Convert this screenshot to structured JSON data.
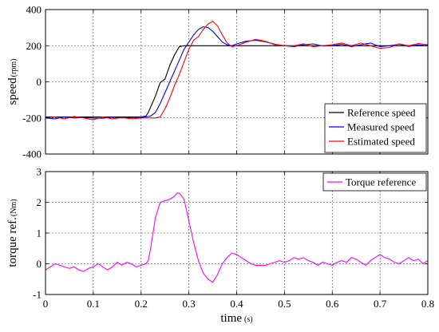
{
  "chart_data": [
    {
      "type": "line",
      "ylabel": "speed",
      "ylabel_unit": "(rpm)",
      "xlim": [
        0,
        0.8
      ],
      "ylim": [
        -400,
        400
      ],
      "xticks": [
        0,
        0.1,
        0.2,
        0.3,
        0.4,
        0.5,
        0.6,
        0.7,
        0.8
      ],
      "xtick_labels": [
        "",
        "",
        "",
        "",
        "",
        "",
        "",
        "",
        ""
      ],
      "yticks": [
        -400,
        -200,
        0,
        200,
        400
      ],
      "ytick_labels": [
        "-400",
        "-200",
        "0",
        "200",
        "400"
      ],
      "grid": true,
      "legend": "bottom-right",
      "series": [
        {
          "name": "Reference speed",
          "color": "#000000",
          "x": [
            0,
            0.05,
            0.1,
            0.15,
            0.2,
            0.21,
            0.215,
            0.22,
            0.23,
            0.24,
            0.25,
            0.26,
            0.27,
            0.28,
            0.29,
            0.3,
            0.35,
            0.4,
            0.45,
            0.5,
            0.55,
            0.6,
            0.65,
            0.7,
            0.75,
            0.8
          ],
          "y": [
            -195,
            -195,
            -195,
            -195,
            -195,
            -190,
            -170,
            -140,
            -80,
            -5,
            15,
            90,
            150,
            195,
            200,
            200,
            200,
            200,
            200,
            200,
            200,
            200,
            200,
            200,
            200,
            200
          ]
        },
        {
          "name": "Measured speed",
          "color": "#0000ff",
          "x": [
            0,
            0.02,
            0.04,
            0.06,
            0.08,
            0.1,
            0.12,
            0.14,
            0.16,
            0.18,
            0.2,
            0.21,
            0.22,
            0.23,
            0.24,
            0.25,
            0.26,
            0.27,
            0.28,
            0.29,
            0.3,
            0.31,
            0.32,
            0.33,
            0.34,
            0.35,
            0.36,
            0.37,
            0.38,
            0.39,
            0.4,
            0.42,
            0.44,
            0.46,
            0.48,
            0.5,
            0.52,
            0.54,
            0.56,
            0.58,
            0.6,
            0.62,
            0.64,
            0.66,
            0.68,
            0.7,
            0.72,
            0.74,
            0.76,
            0.78,
            0.8
          ],
          "y": [
            -200,
            -205,
            -195,
            -200,
            -198,
            -200,
            -202,
            -196,
            -200,
            -198,
            -197,
            -195,
            -190,
            -170,
            -120,
            -60,
            0,
            60,
            120,
            180,
            220,
            260,
            290,
            305,
            300,
            280,
            250,
            220,
            205,
            200,
            210,
            225,
            230,
            222,
            208,
            200,
            195,
            205,
            210,
            198,
            200,
            208,
            195,
            205,
            215,
            195,
            200,
            208,
            196,
            205,
            200
          ]
        },
        {
          "name": "Estimated speed",
          "color": "#ff0000",
          "x": [
            0,
            0.02,
            0.04,
            0.06,
            0.08,
            0.1,
            0.12,
            0.14,
            0.16,
            0.18,
            0.2,
            0.21,
            0.22,
            0.23,
            0.24,
            0.25,
            0.26,
            0.27,
            0.28,
            0.29,
            0.3,
            0.31,
            0.32,
            0.33,
            0.34,
            0.35,
            0.36,
            0.37,
            0.38,
            0.39,
            0.4,
            0.42,
            0.44,
            0.46,
            0.48,
            0.5,
            0.52,
            0.54,
            0.56,
            0.58,
            0.6,
            0.62,
            0.64,
            0.66,
            0.68,
            0.7,
            0.72,
            0.74,
            0.76,
            0.78,
            0.8
          ],
          "y": [
            -200,
            -195,
            -205,
            -192,
            -200,
            -210,
            -195,
            -205,
            -198,
            -205,
            -200,
            -200,
            -200,
            -200,
            -195,
            -150,
            -90,
            -20,
            40,
            110,
            180,
            230,
            250,
            290,
            320,
            335,
            310,
            260,
            215,
            195,
            200,
            220,
            235,
            225,
            205,
            200,
            200,
            210,
            195,
            200,
            205,
            215,
            200,
            215,
            200,
            185,
            190,
            210,
            200,
            212,
            205
          ]
        }
      ]
    },
    {
      "type": "line",
      "ylabel": "torque ref.",
      "ylabel_unit": "(Nm)",
      "xlabel": "time",
      "xlabel_unit": "(s)",
      "xlim": [
        0,
        0.8
      ],
      "ylim": [
        -1,
        3
      ],
      "xticks": [
        0,
        0.1,
        0.2,
        0.3,
        0.4,
        0.5,
        0.6,
        0.7,
        0.8
      ],
      "xtick_labels": [
        "0",
        "0.1",
        "0.2",
        "0.3",
        "0.4",
        "0.5",
        "0.6",
        "0.7",
        "0.8"
      ],
      "yticks": [
        -1,
        0,
        1,
        2,
        3
      ],
      "ytick_labels": [
        "-1",
        "0",
        "1",
        "2",
        "3"
      ],
      "grid": true,
      "legend": "top-right",
      "series": [
        {
          "name": "Torque reference",
          "color": "#ff00ff",
          "x": [
            0,
            0.01,
            0.02,
            0.03,
            0.04,
            0.05,
            0.06,
            0.07,
            0.08,
            0.09,
            0.1,
            0.11,
            0.12,
            0.13,
            0.14,
            0.15,
            0.16,
            0.17,
            0.18,
            0.19,
            0.2,
            0.21,
            0.215,
            0.22,
            0.23,
            0.24,
            0.25,
            0.26,
            0.27,
            0.275,
            0.28,
            0.29,
            0.3,
            0.31,
            0.32,
            0.33,
            0.34,
            0.35,
            0.36,
            0.37,
            0.38,
            0.39,
            0.4,
            0.41,
            0.42,
            0.43,
            0.44,
            0.45,
            0.46,
            0.47,
            0.48,
            0.49,
            0.5,
            0.51,
            0.52,
            0.53,
            0.54,
            0.55,
            0.56,
            0.57,
            0.58,
            0.59,
            0.6,
            0.61,
            0.62,
            0.63,
            0.64,
            0.65,
            0.66,
            0.67,
            0.68,
            0.69,
            0.7,
            0.71,
            0.72,
            0.73,
            0.74,
            0.75,
            0.76,
            0.77,
            0.78,
            0.79,
            0.8
          ],
          "y": [
            -0.2,
            -0.1,
            0.0,
            -0.05,
            -0.1,
            -0.15,
            -0.1,
            -0.2,
            -0.25,
            -0.15,
            -0.1,
            0.0,
            -0.1,
            -0.2,
            -0.1,
            0.05,
            -0.05,
            0.05,
            0.0,
            -0.1,
            -0.05,
            0.0,
            0.1,
            0.5,
            1.5,
            2.0,
            2.05,
            2.1,
            2.2,
            2.3,
            2.3,
            2.1,
            1.4,
            0.7,
            0.1,
            -0.3,
            -0.5,
            -0.6,
            -0.35,
            0.0,
            0.2,
            0.35,
            0.3,
            0.2,
            0.1,
            0.0,
            -0.05,
            -0.05,
            -0.05,
            0.0,
            0.05,
            0.1,
            0.05,
            0.1,
            0.2,
            0.15,
            0.2,
            0.1,
            0.05,
            -0.05,
            0.05,
            0.0,
            -0.05,
            0.05,
            0.1,
            0.05,
            0.2,
            0.15,
            0.05,
            -0.05,
            0.1,
            0.2,
            0.3,
            0.2,
            0.15,
            0.05,
            0.0,
            0.1,
            0.2,
            0.1,
            0.15,
            0.0,
            0.1
          ]
        }
      ]
    }
  ]
}
